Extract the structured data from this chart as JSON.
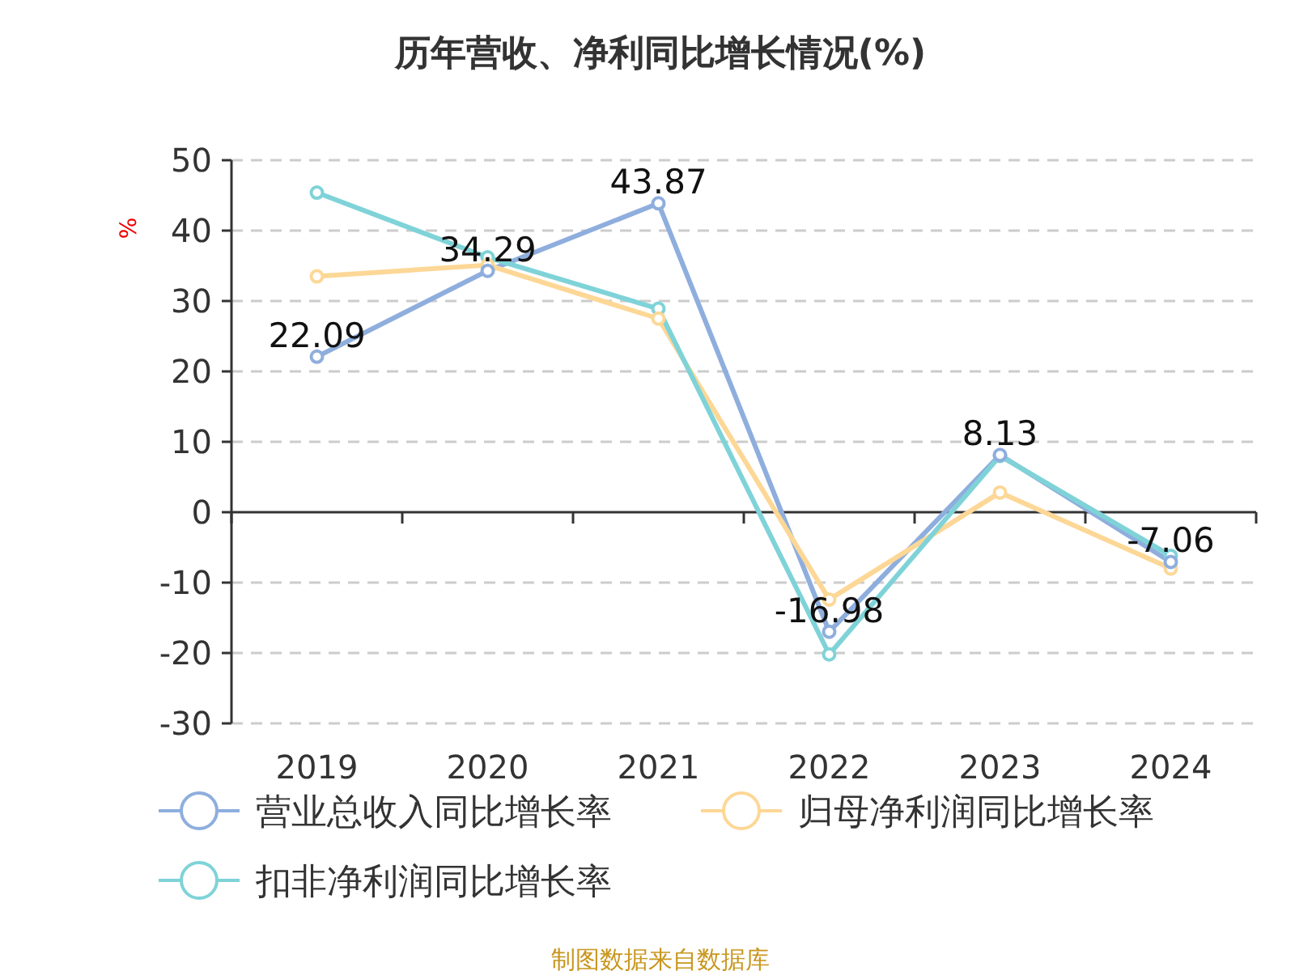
{
  "chart_data": {
    "type": "line",
    "title": "历年营收、净利同比增长情况(%)",
    "ylabel": "%",
    "categories": [
      "2019",
      "2020",
      "2021",
      "2022",
      "2023",
      "2024"
    ],
    "series": [
      {
        "name": "营业总收入同比增长率",
        "color": "#8eaedd",
        "values": [
          22.09,
          34.29,
          43.87,
          -16.98,
          8.13,
          -7.06
        ],
        "value_labels": [
          "22.09",
          "34.29",
          "43.87",
          "-16.98",
          "8.13",
          "-7.06"
        ]
      },
      {
        "name": "归母净利润同比增长率",
        "color": "#fdd796",
        "values": [
          33.5,
          35.1,
          27.5,
          -12.4,
          2.8,
          -8.0
        ]
      },
      {
        "name": "扣非净利润同比增长率",
        "color": "#7fd3d8",
        "values": [
          45.4,
          36.2,
          28.9,
          -20.2,
          8.0,
          -6.2
        ]
      }
    ],
    "ylim": [
      -30,
      50
    ],
    "yticks": [
      -30,
      -20,
      -10,
      0,
      10,
      20,
      30,
      40,
      50
    ],
    "grid": "y",
    "legend": "bottom",
    "marker": "circle",
    "line_style": "solid",
    "annotations": [
      "制图数据来自数据库"
    ]
  }
}
